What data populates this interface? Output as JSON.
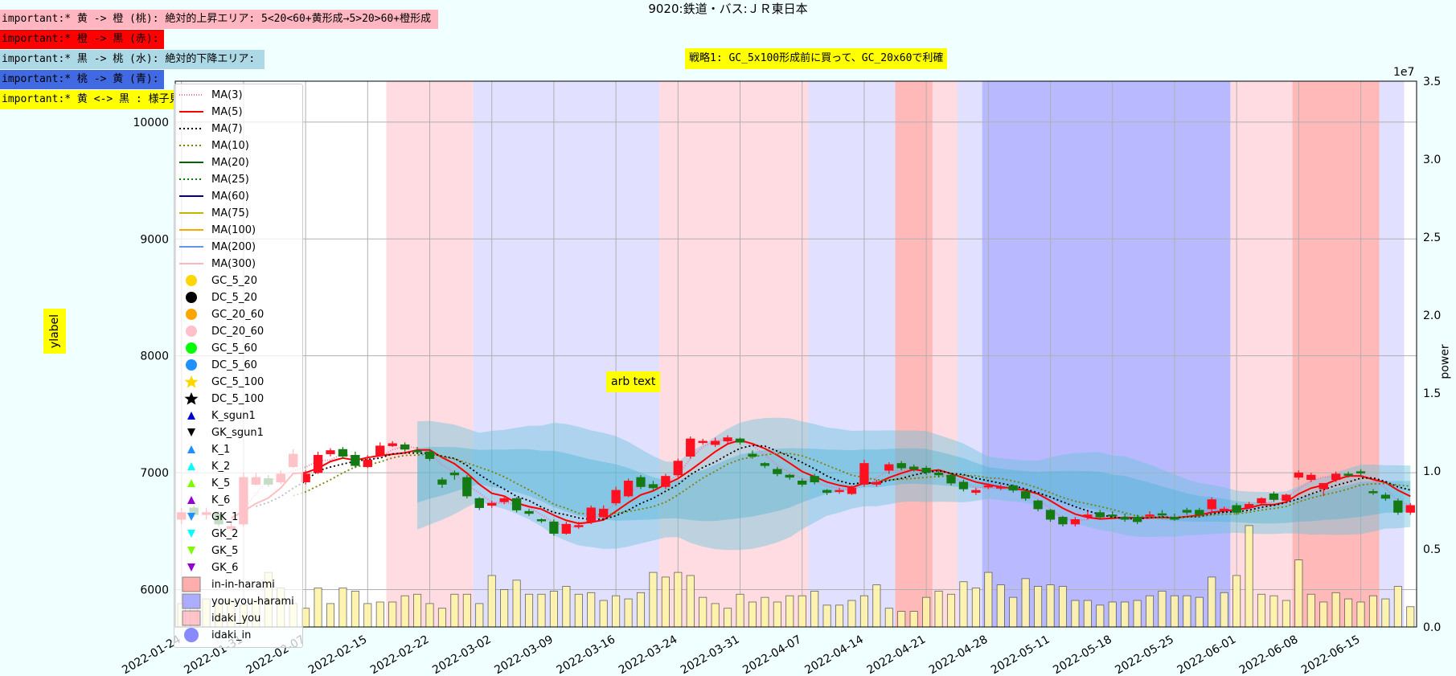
{
  "title": "9020:鉄道・バス:ＪＲ東日本",
  "notes": [
    {
      "text": "important:* 黄 -> 橙 (桃): 絶対的上昇エリア: 5<20<60+黄形成→5>20>60+橙形成",
      "bg": "#ffb6c1",
      "width": 543
    },
    {
      "text": "important:* 橙 -> 黒 (赤):",
      "bg": "#ff0000",
      "width": 202
    },
    {
      "text": "important:* 黒 -> 桃 (水): 絶対的下降エリア:",
      "bg": "#add8e6",
      "width": 327
    },
    {
      "text": "important:* 桃 -> 黄 (青):",
      "bg": "#4169e1",
      "width": 202
    },
    {
      "text": "important:* 黄 <-> 黒 : 様子見:",
      "bg": "#ffff00",
      "width": 226
    }
  ],
  "strategy_text": "戦略1: GC_5x100形成前に買って、GC_20x60で利確",
  "annotation_text": "arb text",
  "ylabel": "ylabel",
  "y2label": "power",
  "y2_exponent": "1e7",
  "chart_data": {
    "type": "candlestick",
    "x": [
      "2022-01-24",
      "2022-01-25",
      "2022-01-26",
      "2022-01-27",
      "2022-01-28",
      "2022-01-31",
      "2022-02-01",
      "2022-02-02",
      "2022-02-03",
      "2022-02-04",
      "2022-02-07",
      "2022-02-08",
      "2022-02-09",
      "2022-02-10",
      "2022-02-14",
      "2022-02-15",
      "2022-02-16",
      "2022-02-17",
      "2022-02-18",
      "2022-02-21",
      "2022-02-22",
      "2022-02-24",
      "2022-02-25",
      "2022-02-28",
      "2022-03-01",
      "2022-03-02",
      "2022-03-03",
      "2022-03-04",
      "2022-03-07",
      "2022-03-08",
      "2022-03-09",
      "2022-03-10",
      "2022-03-11",
      "2022-03-14",
      "2022-03-15",
      "2022-03-16",
      "2022-03-17",
      "2022-03-18",
      "2022-03-22",
      "2022-03-23",
      "2022-03-24",
      "2022-03-25",
      "2022-03-28",
      "2022-03-29",
      "2022-03-30",
      "2022-03-31",
      "2022-04-01",
      "2022-04-04",
      "2022-04-05",
      "2022-04-06",
      "2022-04-07",
      "2022-04-08",
      "2022-04-11",
      "2022-04-12",
      "2022-04-13",
      "2022-04-14",
      "2022-04-15",
      "2022-04-18",
      "2022-04-19",
      "2022-04-20",
      "2022-04-21",
      "2022-04-22",
      "2022-04-25",
      "2022-04-26",
      "2022-04-27",
      "2022-04-28",
      "2022-05-02",
      "2022-05-06",
      "2022-05-09",
      "2022-05-10",
      "2022-05-11",
      "2022-05-12",
      "2022-05-13",
      "2022-05-16",
      "2022-05-17",
      "2022-05-18",
      "2022-05-19",
      "2022-05-20",
      "2022-05-23",
      "2022-05-24",
      "2022-05-25",
      "2022-05-26",
      "2022-05-27",
      "2022-05-30",
      "2022-05-31",
      "2022-06-01",
      "2022-06-02",
      "2022-06-03",
      "2022-06-06",
      "2022-06-07",
      "2022-06-08",
      "2022-06-09",
      "2022-06-10",
      "2022-06-13",
      "2022-06-14",
      "2022-06-15",
      "2022-06-16",
      "2022-06-17",
      "2022-06-20",
      "2022-06-21"
    ],
    "open": [
      6600,
      6700,
      6640,
      6650,
      6520,
      6560,
      6900,
      6950,
      6920,
      7050,
      6920,
      7000,
      7160,
      7200,
      7150,
      7050,
      7150,
      7230,
      7240,
      7190,
      7180,
      6940,
      7000,
      6960,
      6780,
      6720,
      6750,
      6780,
      6670,
      6600,
      6580,
      6480,
      6540,
      6580,
      6620,
      6740,
      6800,
      6960,
      6900,
      6880,
      6980,
      7140,
      7260,
      7240,
      7270,
      7290,
      7160,
      7080,
      7030,
      6980,
      6930,
      6970,
      6850,
      6840,
      6820,
      6900,
      6900,
      7020,
      7080,
      7050,
      7040,
      7000,
      6980,
      6920,
      6830,
      6880,
      6870,
      6890,
      6840,
      6760,
      6680,
      6620,
      6560,
      6620,
      6660,
      6640,
      6620,
      6620,
      6640,
      6650,
      6620,
      6680,
      6680,
      6690,
      6680,
      6720,
      6700,
      6740,
      6820,
      6760,
      6960,
      6940,
      6860,
      6940,
      6990,
      7010,
      6840,
      6810,
      6760,
      6660
    ],
    "close": [
      6660,
      6640,
      6660,
      6560,
      6540,
      6960,
      6960,
      6900,
      6990,
      7160,
      6990,
      7150,
      7190,
      7140,
      7060,
      7110,
      7230,
      7250,
      7200,
      7180,
      7120,
      6900,
      6980,
      6800,
      6700,
      6740,
      6780,
      6680,
      6650,
      6590,
      6480,
      6560,
      6550,
      6700,
      6690,
      6850,
      6930,
      6880,
      6870,
      6970,
      7100,
      7290,
      7270,
      7270,
      7300,
      7260,
      7140,
      7060,
      6990,
      6960,
      6900,
      6920,
      6830,
      6850,
      6870,
      7080,
      6920,
      7070,
      7040,
      7030,
      7000,
      6980,
      6910,
      6860,
      6850,
      6890,
      6880,
      6850,
      6780,
      6690,
      6600,
      6560,
      6600,
      6640,
      6620,
      6630,
      6600,
      6580,
      6640,
      6640,
      6600,
      6660,
      6640,
      6770,
      6690,
      6660,
      6730,
      6780,
      6770,
      6810,
      7000,
      6980,
      6910,
      6990,
      6980,
      7000,
      6830,
      6780,
      6660,
      6720
    ],
    "high": [
      6700,
      6720,
      6700,
      6670,
      6580,
      7000,
      7000,
      6980,
      7020,
      7200,
      7020,
      7180,
      7210,
      7220,
      7180,
      7150,
      7260,
      7270,
      7260,
      7220,
      7200,
      6960,
      7020,
      6980,
      6790,
      6760,
      6800,
      6790,
      6690,
      6610,
      6600,
      6580,
      6580,
      6720,
      6720,
      6880,
      6950,
      6980,
      6930,
      6990,
      7120,
      7310,
      7290,
      7300,
      7320,
      7300,
      7190,
      7090,
      7050,
      6990,
      6950,
      6990,
      6860,
      6870,
      6890,
      7110,
      6940,
      7090,
      7100,
      7070,
      7060,
      7020,
      7000,
      6940,
      6870,
      6910,
      6900,
      6900,
      6850,
      6770,
      6690,
      6630,
      6620,
      6670,
      6680,
      6670,
      6650,
      6640,
      6670,
      6680,
      6650,
      6700,
      6700,
      6790,
      6710,
      6740,
      6750,
      6790,
      6840,
      6820,
      7020,
      7000,
      6880,
      7010,
      7010,
      7030,
      6860,
      6830,
      6780,
      6740
    ],
    "low": [
      6560,
      6620,
      6600,
      6540,
      6500,
      6540,
      6890,
      6880,
      6900,
      7040,
      6900,
      6990,
      7140,
      7120,
      7040,
      7040,
      7140,
      7220,
      7180,
      7160,
      7100,
      6870,
      6940,
      6780,
      6680,
      6700,
      6730,
      6660,
      6630,
      6570,
      6460,
      6470,
      6520,
      6560,
      6610,
      6720,
      6790,
      6860,
      6850,
      6860,
      6960,
      7120,
      7240,
      7220,
      7250,
      7240,
      7120,
      7040,
      6970,
      6940,
      6880,
      6900,
      6810,
      6820,
      6810,
      6880,
      6880,
      6990,
      7020,
      7010,
      6980,
      6960,
      6890,
      6840,
      6810,
      6860,
      6850,
      6830,
      6760,
      6670,
      6580,
      6540,
      6540,
      6600,
      6600,
      6610,
      6580,
      6560,
      6620,
      6620,
      6590,
      6640,
      6620,
      6670,
      6660,
      6640,
      6690,
      6730,
      6750,
      6740,
      6940,
      6920,
      6800,
      6920,
      6960,
      6970,
      6810,
      6760,
      6640,
      6640
    ],
    "volume": [
      1500000,
      1200000,
      1800000,
      1500000,
      1700000,
      1400000,
      1700000,
      3500000,
      2500000,
      1500000,
      1200000,
      2500000,
      1500000,
      2500000,
      2300000,
      1500000,
      1600000,
      1600000,
      2000000,
      2100000,
      1500000,
      1200000,
      2100000,
      2100000,
      1500000,
      3300000,
      2400000,
      3000000,
      2100000,
      2100000,
      2300000,
      2600000,
      2100000,
      2200000,
      1700000,
      2000000,
      1800000,
      2200000,
      3500000,
      3200000,
      3500000,
      3300000,
      1900000,
      1500000,
      1200000,
      2100000,
      1600000,
      1900000,
      1600000,
      2000000,
      2000000,
      2300000,
      1400000,
      1400000,
      1700000,
      2000000,
      2700000,
      1200000,
      1000000,
      1000000,
      1900000,
      2300000,
      2100000,
      2900000,
      2500000,
      3500000,
      2700000,
      1900000,
      3100000,
      2600000,
      2700000,
      2600000,
      1700000,
      1700000,
      1400000,
      1600000,
      1600000,
      1700000,
      2000000,
      2300000,
      2000000,
      2000000,
      1900000,
      3200000,
      2200000,
      3300000,
      6500000,
      2100000,
      2000000,
      1700000,
      4300000,
      2100000,
      1600000,
      2200000,
      1800000,
      1600000,
      2000000,
      1800000,
      2600000,
      1300000
    ],
    "series": [
      {
        "name": "MA(3)",
        "color": "#ff69b4",
        "dash": "1,2"
      },
      {
        "name": "MA(5)",
        "color": "#ff0000",
        "dash": ""
      },
      {
        "name": "MA(7)",
        "color": "#000000",
        "dash": "2,3"
      },
      {
        "name": "MA(10)",
        "color": "#808000",
        "dash": "2,3"
      },
      {
        "name": "MA(20)",
        "color": "#006400",
        "dash": ""
      },
      {
        "name": "MA(25)",
        "color": "#008000",
        "dash": "2,3"
      },
      {
        "name": "MA(60)",
        "color": "#00008b",
        "dash": ""
      },
      {
        "name": "MA(75)",
        "color": "#bdb700",
        "dash": ""
      },
      {
        "name": "MA(100)",
        "color": "#ffa500",
        "dash": ""
      },
      {
        "name": "MA(200)",
        "color": "#6495ed",
        "dash": ""
      },
      {
        "name": "MA(300)",
        "color": "#ffb6c1",
        "dash": ""
      }
    ],
    "markers": [
      {
        "name": "GC_5_20",
        "color": "#ffd700",
        "shape": "circle"
      },
      {
        "name": "DC_5_20",
        "color": "#000000",
        "shape": "circle"
      },
      {
        "name": "GC_20_60",
        "color": "#ffa500",
        "shape": "circle"
      },
      {
        "name": "DC_20_60",
        "color": "#ffc0cb",
        "shape": "circle"
      },
      {
        "name": "GC_5_60",
        "color": "#00ff00",
        "shape": "circle"
      },
      {
        "name": "DC_5_60",
        "color": "#1e90ff",
        "shape": "circle"
      },
      {
        "name": "GC_5_100",
        "color": "#ffd700",
        "shape": "star"
      },
      {
        "name": "DC_5_100",
        "color": "#000000",
        "shape": "star"
      },
      {
        "name": "K_sgun1",
        "color": "#0000cd",
        "shape": "tri-up"
      },
      {
        "name": "GK_sgun1",
        "color": "#000000",
        "shape": "tri-down"
      },
      {
        "name": "K_1",
        "color": "#1e90ff",
        "shape": "tri-up"
      },
      {
        "name": "K_2",
        "color": "#00ffff",
        "shape": "tri-up"
      },
      {
        "name": "K_5",
        "color": "#7cfc00",
        "shape": "tri-up"
      },
      {
        "name": "K_6",
        "color": "#9400d3",
        "shape": "tri-up"
      },
      {
        "name": "GK_1",
        "color": "#1e90ff",
        "shape": "tri-down"
      },
      {
        "name": "GK_2",
        "color": "#00ffff",
        "shape": "tri-down"
      },
      {
        "name": "GK_5",
        "color": "#7cfc00",
        "shape": "tri-down"
      },
      {
        "name": "GK_6",
        "color": "#9400d3",
        "shape": "tri-down"
      },
      {
        "name": "in-in-harami",
        "color": "#ff9999",
        "shape": "square"
      },
      {
        "name": "you-you-harami",
        "color": "#9999ff",
        "shape": "square"
      },
      {
        "name": "idaki_you",
        "color": "#ffb6c1",
        "shape": "square"
      },
      {
        "name": "idaki_in",
        "color": "#8888ff",
        "shape": "circle"
      }
    ],
    "regions": [
      {
        "from": "2022-02-17",
        "to": "2022-02-28",
        "color": "#ffc0cb"
      },
      {
        "from": "2022-03-01",
        "to": "2022-03-22",
        "color": "#c8c8ff"
      },
      {
        "from": "2022-03-23",
        "to": "2022-04-07",
        "color": "#ffc0cb"
      },
      {
        "from": "2022-04-08",
        "to": "2022-04-18",
        "color": "#c8c8ff"
      },
      {
        "from": "2022-04-19",
        "to": "2022-04-21",
        "color": "#ff8080"
      },
      {
        "from": "2022-04-22",
        "to": "2022-04-25",
        "color": "#ffc0cb"
      },
      {
        "from": "2022-04-26",
        "to": "2022-04-27",
        "color": "#c8c8ff"
      },
      {
        "from": "2022-04-28",
        "to": "2022-05-31",
        "color": "#8080ff"
      },
      {
        "from": "2022-06-01",
        "to": "2022-06-07",
        "color": "#ffc0cb"
      },
      {
        "from": "2022-06-08",
        "to": "2022-06-16",
        "color": "#ff8080"
      },
      {
        "from": "2022-06-17",
        "to": "2022-06-20",
        "color": "#c8c8ff"
      }
    ],
    "x_ticks": [
      "2022-01-24",
      "2022-01-31",
      "2022-02-07",
      "2022-02-15",
      "2022-02-22",
      "2022-03-02",
      "2022-03-09",
      "2022-03-16",
      "2022-03-24",
      "2022-03-31",
      "2022-04-07",
      "2022-04-14",
      "2022-04-21",
      "2022-04-28",
      "2022-05-11",
      "2022-05-18",
      "2022-05-25",
      "2022-06-01",
      "2022-06-08",
      "2022-06-15"
    ],
    "x_tick_labels": [
      "2022-01-24",
      "2022-01-31",
      "2022-02-07",
      "2022-02-15",
      "2022-02-22",
      "2022-03-02",
      "2022-03-09",
      "2022-03-16",
      "2022-03-24",
      "2022-03-31",
      "2022-04-07",
      "2022-04-14",
      "2022-04-21",
      "2022-04-28",
      "2022-05-11",
      "2022-05-18",
      "2022-05-25",
      "2022-06-01",
      "2022-06-08",
      "2022-06-15"
    ],
    "y_ticks": [
      6000,
      7000,
      8000,
      9000,
      10000
    ],
    "y_tick_labels": [
      "6000",
      "7000",
      "8000",
      "9000",
      "10000"
    ],
    "ylim": [
      5680,
      10350
    ],
    "y2_ticks": [
      0,
      5000000,
      10000000,
      15000000,
      20000000,
      25000000,
      30000000,
      35000000
    ],
    "y2_tick_labels": [
      "0.0",
      "0.5",
      "1.0",
      "1.5",
      "2.0",
      "2.5",
      "3.0",
      "3.5"
    ],
    "y2lim": [
      0,
      35000000
    ],
    "grid": true,
    "legend_position": "upper-left"
  }
}
